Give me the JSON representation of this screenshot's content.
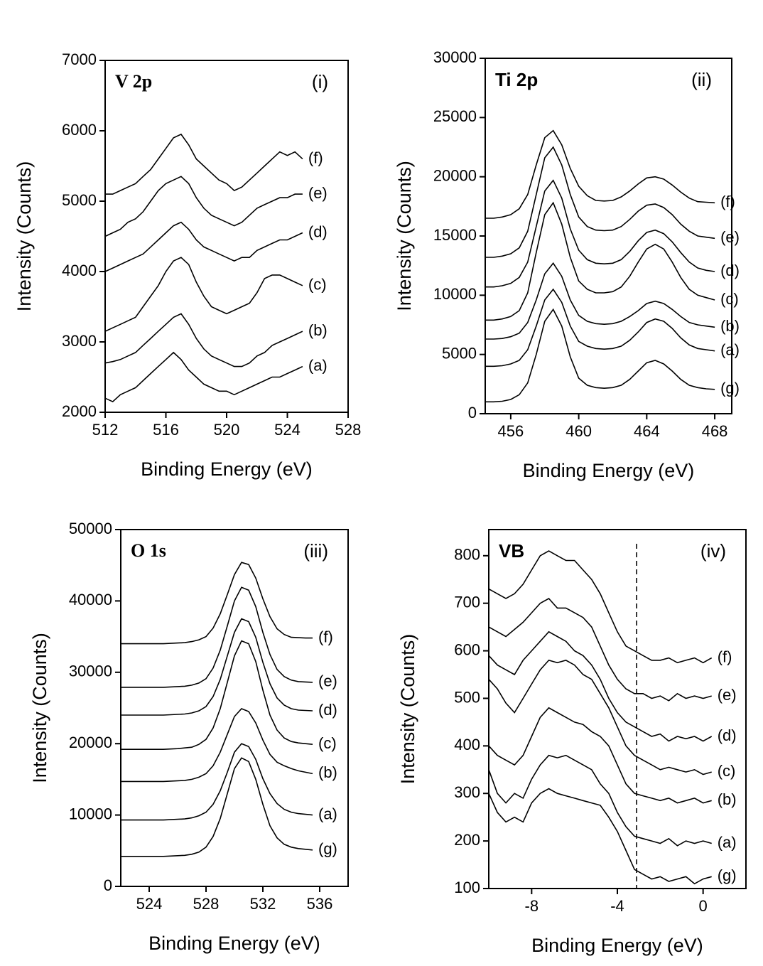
{
  "chart_data": [
    {
      "type": "line",
      "title": "V 2p",
      "panel_label": "(i)",
      "xlabel": "Binding Energy (eV)",
      "ylabel": "Intensity (Counts)",
      "xlim": [
        512,
        528
      ],
      "xticks": [
        512,
        516,
        520,
        524,
        528
      ],
      "ylim": [
        2000,
        7000
      ],
      "yticks": [
        2000,
        3000,
        4000,
        5000,
        6000,
        7000
      ],
      "x": [
        512,
        512.5,
        513,
        513.5,
        514,
        514.5,
        515,
        515.5,
        516,
        516.5,
        517,
        517.5,
        518,
        518.5,
        519,
        519.5,
        520,
        520.5,
        521,
        521.5,
        522,
        522.5,
        523,
        523.5,
        524,
        524.5,
        525
      ],
      "series": [
        {
          "name": "(a)",
          "color": "#000000",
          "values": [
            2200,
            2150,
            2250,
            2300,
            2350,
            2450,
            2550,
            2650,
            2750,
            2850,
            2750,
            2600,
            2500,
            2400,
            2350,
            2300,
            2300,
            2250,
            2300,
            2350,
            2400,
            2450,
            2500,
            2500,
            2550,
            2600,
            2650
          ]
        },
        {
          "name": "(b)",
          "color": "#000000",
          "values": [
            2700,
            2720,
            2750,
            2800,
            2850,
            2950,
            3050,
            3150,
            3250,
            3350,
            3400,
            3250,
            3050,
            2900,
            2800,
            2750,
            2700,
            2650,
            2650,
            2700,
            2800,
            2850,
            2950,
            3000,
            3050,
            3100,
            3150
          ]
        },
        {
          "name": "(c)",
          "color": "#000000",
          "values": [
            3150,
            3200,
            3250,
            3300,
            3350,
            3500,
            3650,
            3800,
            4000,
            4150,
            4200,
            4100,
            3850,
            3650,
            3500,
            3450,
            3400,
            3450,
            3500,
            3550,
            3700,
            3900,
            3950,
            3950,
            3900,
            3850,
            3800
          ]
        },
        {
          "name": "(d)",
          "color": "#000000",
          "values": [
            4000,
            4050,
            4100,
            4150,
            4200,
            4250,
            4350,
            4450,
            4550,
            4650,
            4700,
            4600,
            4450,
            4350,
            4300,
            4250,
            4200,
            4150,
            4200,
            4200,
            4300,
            4350,
            4400,
            4450,
            4450,
            4500,
            4550
          ]
        },
        {
          "name": "(e)",
          "color": "#000000",
          "values": [
            4500,
            4550,
            4600,
            4700,
            4750,
            4850,
            5000,
            5150,
            5250,
            5300,
            5350,
            5250,
            5050,
            4900,
            4800,
            4750,
            4700,
            4650,
            4700,
            4800,
            4900,
            4950,
            5000,
            5050,
            5050,
            5100,
            5100
          ]
        },
        {
          "name": "(f)",
          "color": "#000000",
          "values": [
            5100,
            5100,
            5150,
            5200,
            5250,
            5350,
            5450,
            5600,
            5750,
            5900,
            5950,
            5800,
            5600,
            5500,
            5400,
            5300,
            5250,
            5150,
            5200,
            5300,
            5400,
            5500,
            5600,
            5700,
            5650,
            5700,
            5600
          ]
        }
      ]
    },
    {
      "type": "line",
      "title": "Ti 2p",
      "panel_label": "(ii)",
      "xlabel": "Binding Energy (eV)",
      "ylabel": "Intensity (Counts)",
      "xlim": [
        454.5,
        469
      ],
      "xticks": [
        456,
        460,
        464,
        468
      ],
      "ylim": [
        0,
        30000
      ],
      "yticks": [
        0,
        5000,
        10000,
        15000,
        20000,
        25000,
        30000
      ],
      "x": [
        454.5,
        455,
        455.5,
        456,
        456.5,
        457,
        457.5,
        458,
        458.5,
        459,
        459.5,
        460,
        460.5,
        461,
        461.5,
        462,
        462.5,
        463,
        463.5,
        464,
        464.5,
        465,
        465.5,
        466,
        466.5,
        467,
        467.5,
        468
      ],
      "series": [
        {
          "name": "(g)",
          "color": "#000000",
          "values": [
            1000,
            1000,
            1050,
            1200,
            1600,
            2600,
            5000,
            7800,
            8800,
            7400,
            4800,
            3000,
            2400,
            2200,
            2150,
            2200,
            2400,
            2900,
            3600,
            4300,
            4500,
            4200,
            3600,
            2900,
            2400,
            2200,
            2100,
            2050
          ]
        },
        {
          "name": "(a)",
          "color": "#000000",
          "values": [
            4000,
            4000,
            4050,
            4200,
            4500,
            5400,
            7400,
            9600,
            10500,
            9400,
            7400,
            6100,
            5700,
            5500,
            5450,
            5500,
            5700,
            6200,
            6900,
            7700,
            8000,
            7800,
            7200,
            6400,
            5800,
            5500,
            5400,
            5300
          ]
        },
        {
          "name": "(b)",
          "color": "#000000",
          "values": [
            6300,
            6300,
            6350,
            6500,
            6800,
            7700,
            9600,
            11800,
            12700,
            11600,
            9600,
            8300,
            7800,
            7600,
            7550,
            7600,
            7800,
            8200,
            8700,
            9300,
            9500,
            9300,
            8800,
            8200,
            7700,
            7500,
            7400,
            7300
          ]
        },
        {
          "name": "(c)",
          "color": "#000000",
          "values": [
            7900,
            7900,
            8000,
            8200,
            8700,
            10200,
            13600,
            16800,
            17800,
            16000,
            13200,
            11200,
            10500,
            10200,
            10200,
            10300,
            10700,
            11600,
            12800,
            13900,
            14300,
            13900,
            12800,
            11500,
            10500,
            10000,
            9800,
            9600
          ]
        },
        {
          "name": "(d)",
          "color": "#000000",
          "values": [
            10700,
            10700,
            10800,
            11000,
            11500,
            12800,
            15800,
            18800,
            19700,
            18200,
            15600,
            13800,
            13000,
            12700,
            12650,
            12700,
            13000,
            13700,
            14600,
            15300,
            15500,
            15200,
            14500,
            13600,
            12800,
            12300,
            12100,
            12000
          ]
        },
        {
          "name": "(e)",
          "color": "#000000",
          "values": [
            13200,
            13200,
            13300,
            13500,
            14000,
            15400,
            18500,
            21600,
            22500,
            21000,
            18500,
            16600,
            15800,
            15500,
            15450,
            15500,
            15800,
            16400,
            17100,
            17600,
            17700,
            17400,
            16800,
            16000,
            15400,
            15000,
            14900,
            14800
          ]
        },
        {
          "name": "(f)",
          "color": "#000000",
          "values": [
            16500,
            16500,
            16600,
            16800,
            17300,
            18500,
            21000,
            23300,
            23900,
            22700,
            20700,
            19200,
            18400,
            18000,
            17950,
            18000,
            18300,
            18800,
            19400,
            19900,
            20000,
            19800,
            19300,
            18700,
            18200,
            17900,
            17850,
            17800
          ]
        }
      ]
    },
    {
      "type": "line",
      "title": "O 1s",
      "panel_label": "(iii)",
      "xlabel": "Binding Energy (eV)",
      "ylabel": "Intensity (Counts)",
      "xlim": [
        522,
        538
      ],
      "xticks": [
        524,
        528,
        532,
        536
      ],
      "ylim": [
        0,
        50000
      ],
      "yticks": [
        0,
        10000,
        20000,
        30000,
        40000,
        50000
      ],
      "x": [
        522,
        522.5,
        523,
        523.5,
        524,
        524.5,
        525,
        525.5,
        526,
        526.5,
        527,
        527.5,
        528,
        528.5,
        529,
        529.5,
        530,
        530.5,
        531,
        531.5,
        532,
        532.5,
        533,
        533.5,
        534,
        534.5,
        535,
        535.5
      ],
      "series": [
        {
          "name": "(g)",
          "color": "#000000",
          "values": [
            4200,
            4200,
            4200,
            4200,
            4200,
            4200,
            4200,
            4250,
            4300,
            4350,
            4500,
            4800,
            5500,
            7000,
            9500,
            13000,
            16500,
            18000,
            17500,
            15000,
            11500,
            8500,
            6800,
            5900,
            5500,
            5300,
            5200,
            5100
          ]
        },
        {
          "name": "(a)",
          "color": "#000000",
          "values": [
            9300,
            9300,
            9300,
            9300,
            9300,
            9300,
            9300,
            9350,
            9400,
            9450,
            9600,
            9900,
            10400,
            11500,
            13400,
            16000,
            18800,
            20000,
            19600,
            17800,
            15100,
            13000,
            11600,
            10800,
            10400,
            10200,
            10100,
            10000
          ]
        },
        {
          "name": "(b)",
          "color": "#000000",
          "values": [
            14700,
            14700,
            14700,
            14700,
            14700,
            14700,
            14700,
            14750,
            14800,
            14850,
            15000,
            15300,
            15800,
            16900,
            18800,
            21300,
            23800,
            24900,
            24500,
            22900,
            20500,
            18500,
            17400,
            16900,
            16500,
            16200,
            16000,
            15800
          ]
        },
        {
          "name": "(c)",
          "color": "#000000",
          "values": [
            19200,
            19200,
            19200,
            19200,
            19200,
            19200,
            19200,
            19250,
            19300,
            19400,
            19500,
            19900,
            20600,
            22200,
            24900,
            28600,
            32300,
            34400,
            34000,
            31500,
            27500,
            24000,
            21900,
            20800,
            20300,
            20100,
            20000,
            19900
          ]
        },
        {
          "name": "(d)",
          "color": "#000000",
          "values": [
            24000,
            24000,
            24000,
            24000,
            24000,
            24000,
            24000,
            24050,
            24100,
            24150,
            24300,
            24600,
            25200,
            26600,
            29000,
            32300,
            35600,
            37500,
            37100,
            34900,
            31400,
            28400,
            26400,
            25400,
            24900,
            24700,
            24650,
            24600
          ]
        },
        {
          "name": "(e)",
          "color": "#000000",
          "values": [
            27900,
            27900,
            27900,
            27900,
            27900,
            27900,
            27900,
            27950,
            28000,
            28050,
            28200,
            28500,
            29100,
            30600,
            33100,
            36500,
            40000,
            41900,
            41500,
            39200,
            35600,
            32500,
            30400,
            29400,
            28900,
            28700,
            28650,
            28600
          ]
        },
        {
          "name": "(f)",
          "color": "#000000",
          "values": [
            34000,
            34000,
            34000,
            34000,
            34000,
            34000,
            34000,
            34050,
            34100,
            34150,
            34300,
            34550,
            35000,
            36200,
            38200,
            40900,
            43700,
            45400,
            45100,
            43200,
            40300,
            37800,
            36100,
            35300,
            34900,
            34850,
            34800,
            34800
          ]
        }
      ]
    },
    {
      "type": "line",
      "title": "VB",
      "panel_label": "(iv)",
      "xlabel": "Binding Energy (eV)",
      "ylabel": "Intensity (Counts)",
      "xlim": [
        -10,
        2
      ],
      "xticks": [
        -8,
        -4,
        0
      ],
      "ylim": [
        100,
        855
      ],
      "yticks": [
        100,
        200,
        300,
        400,
        500,
        600,
        700,
        800
      ],
      "vline": -3.1,
      "x": [
        -10,
        -9.6,
        -9.2,
        -8.8,
        -8.4,
        -8,
        -7.6,
        -7.2,
        -6.8,
        -6.4,
        -6,
        -5.6,
        -5.2,
        -4.8,
        -4.4,
        -4,
        -3.6,
        -3.2,
        -2.8,
        -2.4,
        -2,
        -1.6,
        -1.2,
        -0.8,
        -0.4,
        0,
        0.4
      ],
      "series": [
        {
          "name": "(g)",
          "color": "#000000",
          "values": [
            300,
            260,
            240,
            250,
            240,
            280,
            300,
            310,
            300,
            295,
            290,
            285,
            280,
            275,
            250,
            220,
            180,
            140,
            130,
            120,
            125,
            115,
            120,
            125,
            110,
            120,
            125
          ]
        },
        {
          "name": "(a)",
          "color": "#000000",
          "values": [
            350,
            300,
            280,
            300,
            290,
            330,
            360,
            380,
            375,
            380,
            370,
            360,
            350,
            320,
            300,
            260,
            230,
            210,
            205,
            200,
            195,
            205,
            190,
            200,
            195,
            200,
            195
          ]
        },
        {
          "name": "(b)",
          "color": "#000000",
          "values": [
            400,
            380,
            370,
            360,
            380,
            420,
            460,
            480,
            470,
            460,
            450,
            445,
            430,
            420,
            400,
            360,
            320,
            300,
            295,
            290,
            285,
            290,
            280,
            285,
            290,
            280,
            285
          ]
        },
        {
          "name": "(c)",
          "color": "#000000",
          "values": [
            540,
            520,
            490,
            470,
            500,
            530,
            560,
            580,
            575,
            580,
            570,
            550,
            540,
            510,
            480,
            440,
            400,
            380,
            370,
            360,
            350,
            355,
            350,
            345,
            350,
            340,
            345
          ]
        },
        {
          "name": "(d)",
          "color": "#000000",
          "values": [
            590,
            570,
            560,
            550,
            580,
            600,
            620,
            640,
            630,
            620,
            600,
            590,
            570,
            540,
            500,
            470,
            450,
            440,
            430,
            420,
            425,
            410,
            420,
            415,
            420,
            410,
            420
          ]
        },
        {
          "name": "(e)",
          "color": "#000000",
          "values": [
            650,
            640,
            630,
            645,
            660,
            680,
            700,
            710,
            690,
            690,
            680,
            670,
            650,
            610,
            570,
            540,
            520,
            510,
            510,
            500,
            505,
            495,
            510,
            500,
            505,
            500,
            505
          ]
        },
        {
          "name": "(f)",
          "color": "#000000",
          "values": [
            730,
            720,
            710,
            720,
            740,
            770,
            800,
            810,
            800,
            790,
            790,
            770,
            750,
            720,
            680,
            640,
            610,
            600,
            590,
            580,
            580,
            585,
            575,
            580,
            585,
            575,
            585
          ]
        }
      ]
    }
  ]
}
